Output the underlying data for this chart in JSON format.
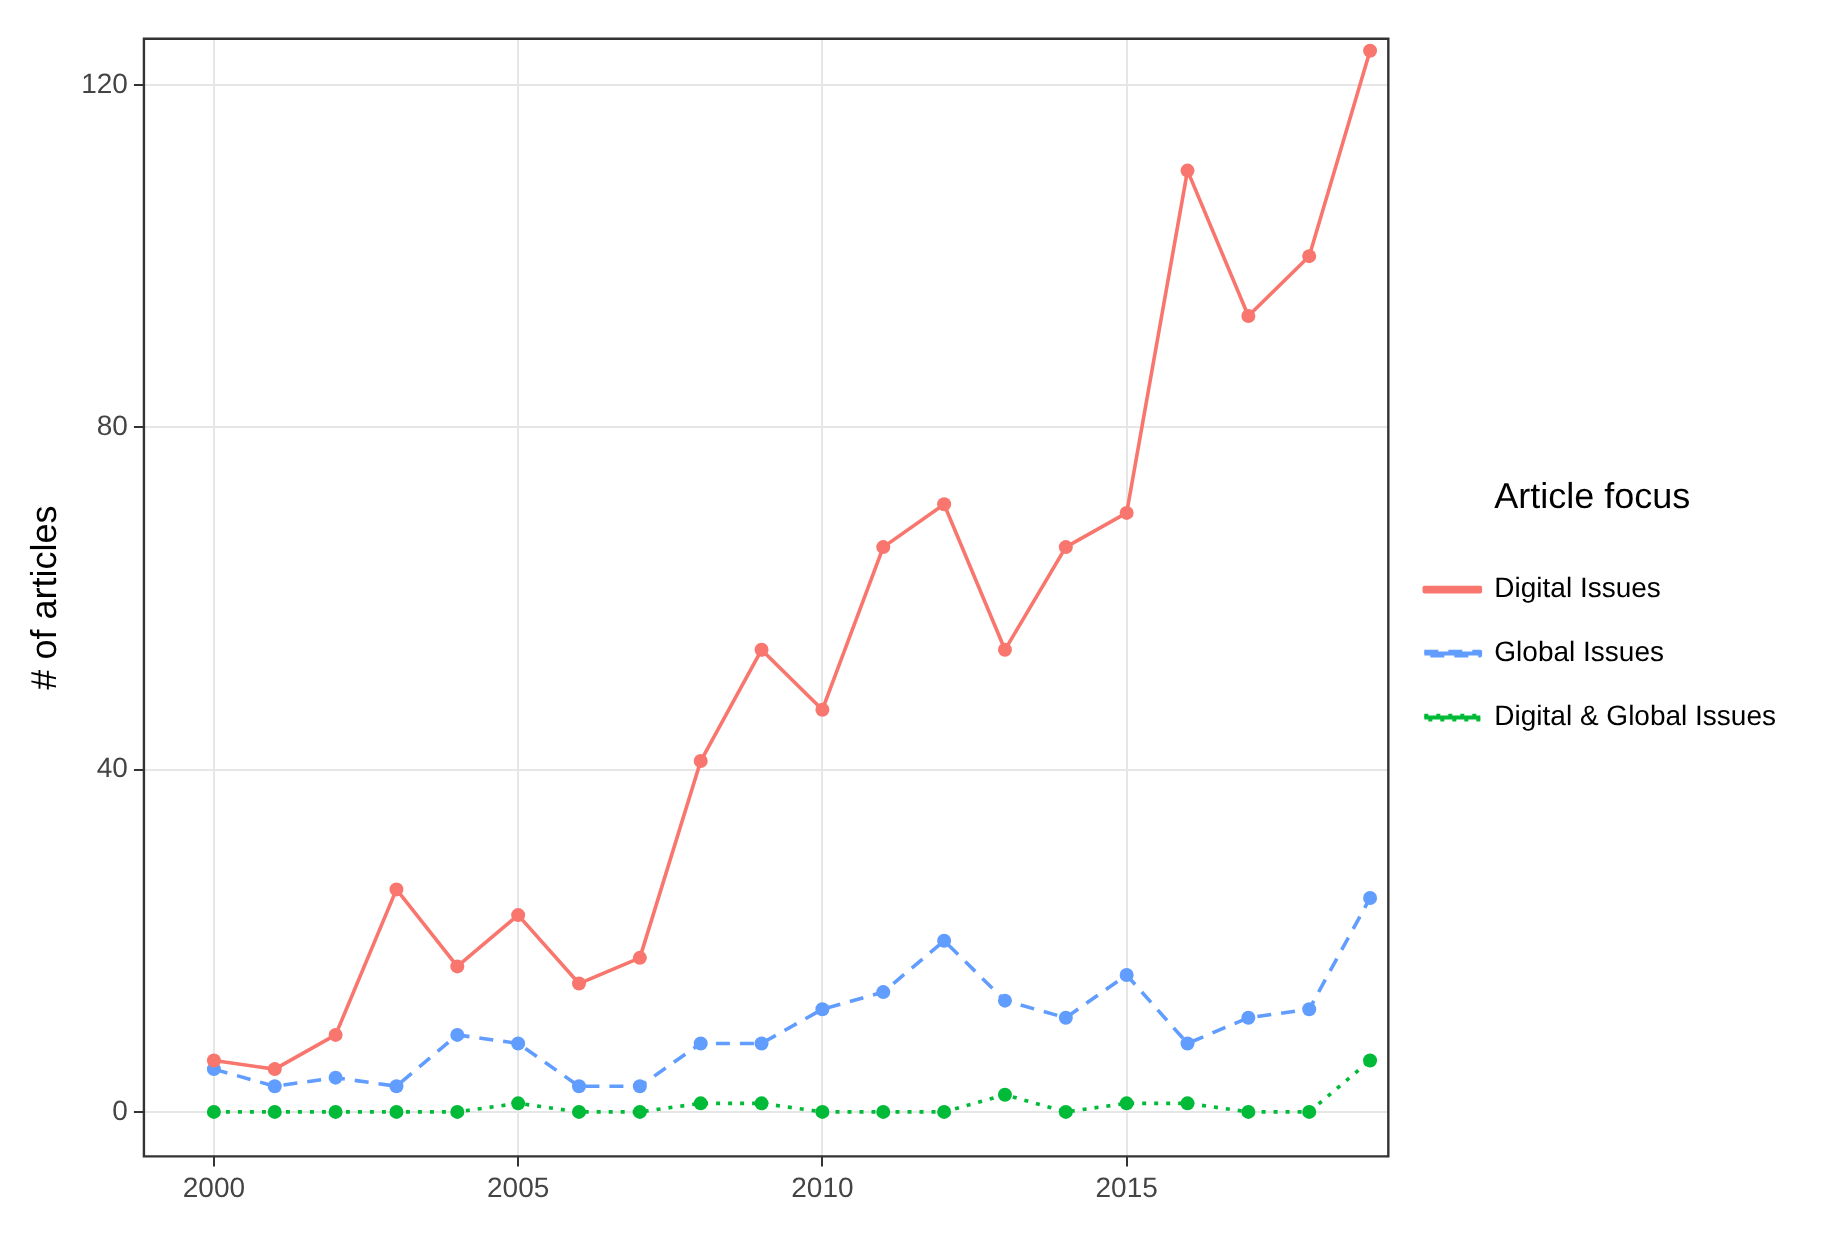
{
  "chart_data": {
    "type": "line",
    "ylabel": "# of articles",
    "legend_title": "Article focus",
    "legend": "right",
    "grid": true,
    "marker": "circle",
    "x": [
      2000,
      2001,
      2002,
      2003,
      2004,
      2005,
      2006,
      2007,
      2008,
      2009,
      2010,
      2011,
      2012,
      2013,
      2014,
      2015,
      2016,
      2017,
      2018,
      2019
    ],
    "xlim": [
      1998.85,
      2019.3
    ],
    "xticks": [
      2000,
      2005,
      2010,
      2015
    ],
    "ylim": [
      -5.2,
      125.4
    ],
    "yticks": [
      0,
      40,
      80,
      120
    ],
    "series": [
      {
        "name": "Digital Issues",
        "color": "#f8766d",
        "line_style": "solid",
        "values": [
          6,
          5,
          9,
          26,
          17,
          23,
          15,
          18,
          41,
          54,
          47,
          66,
          71,
          54,
          66,
          70,
          110,
          93,
          100,
          124
        ]
      },
      {
        "name": "Global Issues",
        "color": "#619cff",
        "line_style": "dashed",
        "values": [
          5,
          3,
          4,
          3,
          9,
          8,
          3,
          3,
          8,
          8,
          12,
          14,
          20,
          13,
          11,
          16,
          8,
          11,
          12,
          25
        ]
      },
      {
        "name": "Digital & Global Issues",
        "color": "#00ba38",
        "line_style": "dotted",
        "values": [
          0,
          0,
          0,
          0,
          0,
          1,
          0,
          0,
          1,
          1,
          0,
          0,
          0,
          2,
          0,
          1,
          1,
          0,
          0,
          6
        ]
      }
    ]
  }
}
